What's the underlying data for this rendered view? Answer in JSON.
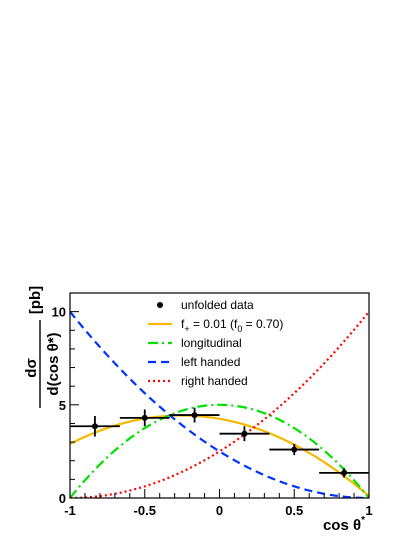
{
  "chart_data": {
    "type": "line",
    "title": "",
    "xlabel": "cos θ*",
    "ylabel": "dσ / d(cos θ*) [pb]",
    "ylabel_parts": {
      "numerator": "dσ",
      "denominator": "d(cos θ*)",
      "unit": "[pb]"
    },
    "xlim": [
      -1,
      1
    ],
    "ylim": [
      0,
      11
    ],
    "x_ticks": [
      -1,
      -0.5,
      0,
      0.5,
      1
    ],
    "x_tick_labels": [
      "-1",
      "-0.5",
      "0",
      "0.5",
      "1"
    ],
    "y_ticks": [
      0,
      5,
      10
    ],
    "y_tick_labels": [
      "0",
      "5",
      "10"
    ],
    "grid": false,
    "legend_position": "top-center",
    "data_points": {
      "name": "unfolded data",
      "x": [
        -0.8333,
        -0.5,
        -0.1667,
        0.1667,
        0.5,
        0.8333
      ],
      "y": [
        3.85,
        4.3,
        4.45,
        3.45,
        2.6,
        1.35
      ],
      "x_err": [
        0.1667,
        0.1667,
        0.1667,
        0.1667,
        0.1667,
        0.1667
      ],
      "y_err": [
        0.55,
        0.45,
        0.4,
        0.4,
        0.3,
        0.25
      ],
      "color": "#000000"
    },
    "series": [
      {
        "name": "f₊ = 0.01 (f₀ = 0.70)",
        "legend_main": "f",
        "legend_sub": "+",
        "legend_rest": " = 0.01 (f",
        "legend_sub2": "0",
        "legend_tail": " = 0.70)",
        "function": "fit",
        "color": "#f5b800",
        "dash": "solid",
        "x": [
          -1,
          -0.5,
          0,
          0.5,
          1
        ],
        "y": [
          2.97,
          4.27,
          4.43,
          3.24,
          0
        ]
      },
      {
        "name": "longitudinal",
        "function": "longitudinal",
        "color": "#00e000",
        "dash": "dashdot",
        "x": [
          -1,
          -0.5,
          0,
          0.5,
          1
        ],
        "y": [
          0,
          3.75,
          5,
          3.75,
          0
        ]
      },
      {
        "name": "left handed",
        "function": "left",
        "color": "#0033ff",
        "dash": "dashed",
        "x": [
          -1,
          -0.5,
          0,
          0.5,
          1
        ],
        "y": [
          10,
          5.625,
          2.5,
          0.625,
          0
        ]
      },
      {
        "name": "right handed",
        "function": "right",
        "color": "#ff0000",
        "dash": "dotted",
        "x": [
          -1,
          -0.5,
          0,
          0.5,
          1
        ],
        "y": [
          0,
          0.625,
          2.5,
          5.625,
          10
        ]
      }
    ]
  }
}
